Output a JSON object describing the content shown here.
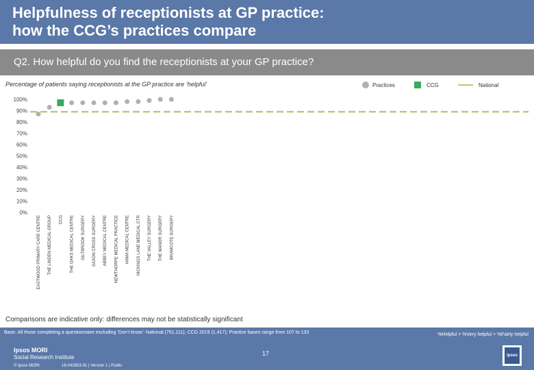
{
  "header": {
    "title": "Helpfulness of receptionists at GP practice:\nhow the CCG’s practices compare"
  },
  "question": "Q2. How helpful do you find the receptionists at your GP practice?",
  "legend": {
    "practices": "Practices",
    "ccg": "CCG",
    "national": "National"
  },
  "chart_data": {
    "type": "scatter",
    "title": "Percentage of patients saying receptionists at the GP practice are ‘helpful’",
    "ylim": [
      0,
      100
    ],
    "yticks": [
      "0%",
      "10%",
      "20%",
      "30%",
      "40%",
      "50%",
      "60%",
      "70%",
      "80%",
      "90%",
      "100%"
    ],
    "grid": false,
    "legend_position": "top-right",
    "categories": [
      "EASTWOOD PRIMARY CARE CENTRE",
      "THE LINDEN MEDICAL GROUP",
      "CCG",
      "THE OAKS MEDICAL CENTRE",
      "GILTBROOK SURGERY",
      "SAXON CROSS SURGERY",
      "ABBEY MEDICAL CENTRE",
      "NEWTHORPE MEDICAL PRACTICE",
      "HAMA MEDICAL CENTRE",
      "HICKINGS LANE MEDICAL CTR",
      "THE VALLEY SURGERY",
      "THE MANOR SURGERY",
      "BRAMCOTE SURGERY"
    ],
    "values": [
      87,
      93,
      97,
      97,
      97,
      97,
      97,
      97,
      98,
      98,
      99,
      100,
      100
    ],
    "types": [
      "practice",
      "practice",
      "ccg",
      "practice",
      "practice",
      "practice",
      "practice",
      "practice",
      "practice",
      "practice",
      "practice",
      "practice",
      "practice"
    ],
    "national": 89,
    "colors": {
      "practice": "#b0b0b0",
      "ccg": "#3aaa5c",
      "national": "#c8c27a"
    }
  },
  "footnote": "Comparisons are indicative only: differences may not be statistically significant",
  "footer": {
    "base": "Base: All those completing a questionnaire excluding ‘Don’t know’: National (751,111); CCG 2019 (1,417); Practice bases range from 107 to 133",
    "formula": "%Helpful = %Very helpful + %Fairly helpful",
    "logo_line1": "Ipsos MORI",
    "logo_line2": "Social Research Institute",
    "page": "17",
    "copyright": "© Ipsos MORI",
    "jobref": "18-042653-01 | Version 1 | Public",
    "badge": "ipsos"
  }
}
